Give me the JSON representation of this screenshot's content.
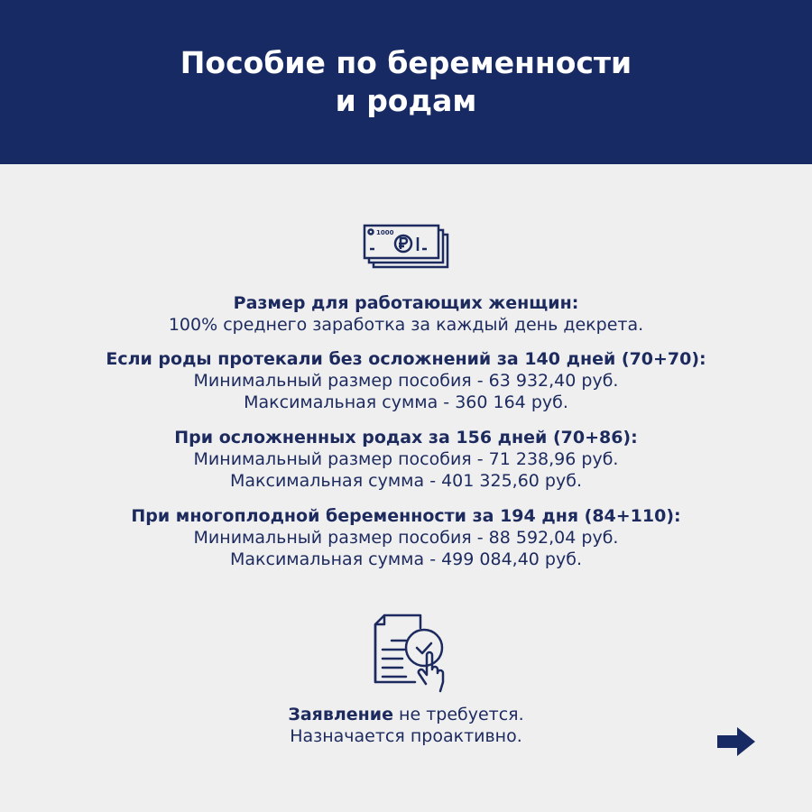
{
  "header": {
    "title_line1": "Пособие по беременности",
    "title_line2": "и родам"
  },
  "icons": {
    "money": "money-banknotes-icon",
    "document": "document-check-hand-icon",
    "next": "arrow-right-icon"
  },
  "colors": {
    "header_bg": "#172a64",
    "text": "#1c2a5e",
    "background": "#efeff0"
  },
  "sections": [
    {
      "heading": "Размер для работающих женщин:",
      "lines": [
        "100% среднего заработка за каждый день декрета."
      ]
    },
    {
      "heading": "Если роды протекали без осложнений за 140 дней (70+70):",
      "lines": [
        "Минимальный размер пособия - 63 932,40 руб.",
        "Максимальная сумма - 360 164 руб."
      ]
    },
    {
      "heading": "При осложненных родах за 156 дней (70+86):",
      "lines": [
        "Минимальный размер пособия - 71 238,96 руб.",
        "Максимальная сумма - 401 325,60 руб."
      ]
    },
    {
      "heading": "При многоплодной беременности за 194 дня (84+110):",
      "lines": [
        "Минимальный размер пособия - 88 592,04 руб.",
        "Максимальная сумма - 499 084,40 руб."
      ]
    }
  ],
  "footer": {
    "bold": "Заявление",
    "rest": " не требуется.",
    "line2": "Назначается проактивно."
  }
}
